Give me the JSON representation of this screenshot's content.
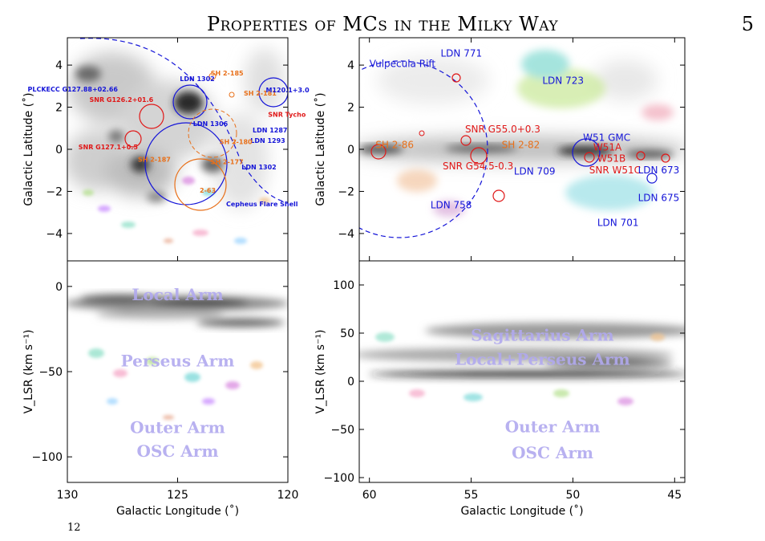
{
  "header": {
    "running_title": "Properties of MCs in the Milky Way",
    "page_number": "5"
  },
  "caption_fragment": "12",
  "colors": {
    "blue": "#1515d8",
    "red": "#e01818",
    "orange": "#e8701a",
    "arm": "#b0a8ee",
    "axis": "#000000"
  },
  "chart_data": [
    {
      "type": "scatter",
      "panel": "top-left",
      "xlabel": "",
      "ylabel": "Galactic Latitude (˚)",
      "xlim": [
        130,
        120
      ],
      "ylim": [
        -5.3,
        5.3
      ],
      "yticks": [
        "-4",
        "-2",
        "0",
        "2",
        "4"
      ],
      "annotations": [
        {
          "text": "PLCKECC G127.88+02.66",
          "x": 131.8,
          "y": 2.75,
          "color": "blue"
        },
        {
          "text": "SNR G126.2+01.6",
          "x": 129.0,
          "y": 2.25,
          "color": "red"
        },
        {
          "text": "LDN 1302",
          "x": 124.9,
          "y": 3.25,
          "color": "blue"
        },
        {
          "text": "SH 2-185",
          "x": 123.5,
          "y": 3.5,
          "color": "orange"
        },
        {
          "text": "SH 2-181",
          "x": 122.0,
          "y": 2.55,
          "color": "orange"
        },
        {
          "text": "M120.1+3.0",
          "x": 121.0,
          "y": 2.7,
          "color": "blue"
        },
        {
          "text": "SNR Tycho",
          "x": 120.9,
          "y": 1.55,
          "color": "red"
        },
        {
          "text": "LDN 1306",
          "x": 124.3,
          "y": 1.1,
          "color": "blue"
        },
        {
          "text": "LDN 1287",
          "x": 121.6,
          "y": 0.8,
          "color": "blue"
        },
        {
          "text": "LDN 1293",
          "x": 121.7,
          "y": 0.3,
          "color": "blue"
        },
        {
          "text": "SH 2-180",
          "x": 123.1,
          "y": 0.25,
          "color": "orange"
        },
        {
          "text": "SNR G127.1+0.5",
          "x": 129.5,
          "y": 0.0,
          "color": "red"
        },
        {
          "text": "SH 2-187",
          "x": 126.8,
          "y": -0.6,
          "color": "orange"
        },
        {
          "text": "SH 2-177",
          "x": 123.5,
          "y": -0.7,
          "color": "orange"
        },
        {
          "text": "LDN 1302",
          "x": 122.1,
          "y": -0.95,
          "color": "blue"
        },
        {
          "text": "2-63",
          "x": 124.0,
          "y": -2.05,
          "color": "orange"
        },
        {
          "text": "Cepheus Flare Shell",
          "x": 122.8,
          "y": -2.7,
          "color": "blue"
        }
      ]
    },
    {
      "type": "scatter",
      "panel": "top-right",
      "xlabel": "",
      "ylabel": "Galactic Latitude (˚)",
      "xlim": [
        60.5,
        44.5
      ],
      "ylim": [
        -5.3,
        5.3
      ],
      "yticks": [
        "-4",
        "-2",
        "0",
        "2",
        "4"
      ],
      "annotations": [
        {
          "text": "Vulpecula Rift",
          "x": 60.0,
          "y": 3.9,
          "color": "blue"
        },
        {
          "text": "LDN 771",
          "x": 56.5,
          "y": 4.4,
          "color": "blue"
        },
        {
          "text": "LDN 723",
          "x": 51.5,
          "y": 3.1,
          "color": "blue"
        },
        {
          "text": "SH 2-86",
          "x": 59.7,
          "y": 0.05,
          "color": "orange"
        },
        {
          "text": "SNR G55.0+0.3",
          "x": 55.3,
          "y": 0.8,
          "color": "red"
        },
        {
          "text": "SH 2-82",
          "x": 53.5,
          "y": 0.05,
          "color": "orange"
        },
        {
          "text": "SNR G54.5-0.3",
          "x": 56.4,
          "y": -0.95,
          "color": "red"
        },
        {
          "text": "LDN 709",
          "x": 52.9,
          "y": -1.2,
          "color": "blue"
        },
        {
          "text": "W51 GMC",
          "x": 49.5,
          "y": 0.4,
          "color": "blue"
        },
        {
          "text": "W51A",
          "x": 49.0,
          "y": -0.05,
          "color": "red"
        },
        {
          "text": "W51B",
          "x": 48.8,
          "y": -0.6,
          "color": "red"
        },
        {
          "text": "SNR W51C",
          "x": 49.2,
          "y": -1.15,
          "color": "red"
        },
        {
          "text": "LDN 673",
          "x": 46.8,
          "y": -1.15,
          "color": "blue"
        },
        {
          "text": "LDN 675",
          "x": 46.8,
          "y": -2.45,
          "color": "blue"
        },
        {
          "text": "LDN 758",
          "x": 57.0,
          "y": -2.8,
          "color": "blue"
        },
        {
          "text": "LDN 701",
          "x": 48.8,
          "y": -3.65,
          "color": "blue"
        }
      ]
    },
    {
      "type": "scatter",
      "panel": "bottom-left",
      "xlabel": "Galactic Longitude (˚)",
      "ylabel": "V_LSR (km s⁻¹)",
      "xlim": [
        130,
        120
      ],
      "ylim": [
        -115,
        15
      ],
      "xticks": [
        "130",
        "125",
        "120"
      ],
      "yticks": [
        "-100",
        "-50",
        "0"
      ],
      "arm_labels": [
        {
          "text": "Local Arm",
          "x": 125.0,
          "y": -8
        },
        {
          "text": "Perseus Arm",
          "x": 125.0,
          "y": -47
        },
        {
          "text": "Outer Arm",
          "x": 125.0,
          "y": -86
        },
        {
          "text": "OSC Arm",
          "x": 125.0,
          "y": -100
        }
      ]
    },
    {
      "type": "scatter",
      "panel": "bottom-right",
      "xlabel": "Galactic Longitude (˚)",
      "ylabel": "V_LSR (km s⁻¹)",
      "xlim": [
        60.5,
        44.5
      ],
      "ylim": [
        -105,
        125
      ],
      "xticks": [
        "60",
        "55",
        "50",
        "45"
      ],
      "yticks": [
        "-100",
        "-50",
        "0",
        "50",
        "100"
      ],
      "arm_labels": [
        {
          "text": "Sagittarius Arm",
          "x": 51.5,
          "y": 42
        },
        {
          "text": "Local+Perseus Arm",
          "x": 51.5,
          "y": 17
        },
        {
          "text": "Outer Arm",
          "x": 51.0,
          "y": -53
        },
        {
          "text": "OSC Arm",
          "x": 51.0,
          "y": -80
        }
      ]
    }
  ]
}
